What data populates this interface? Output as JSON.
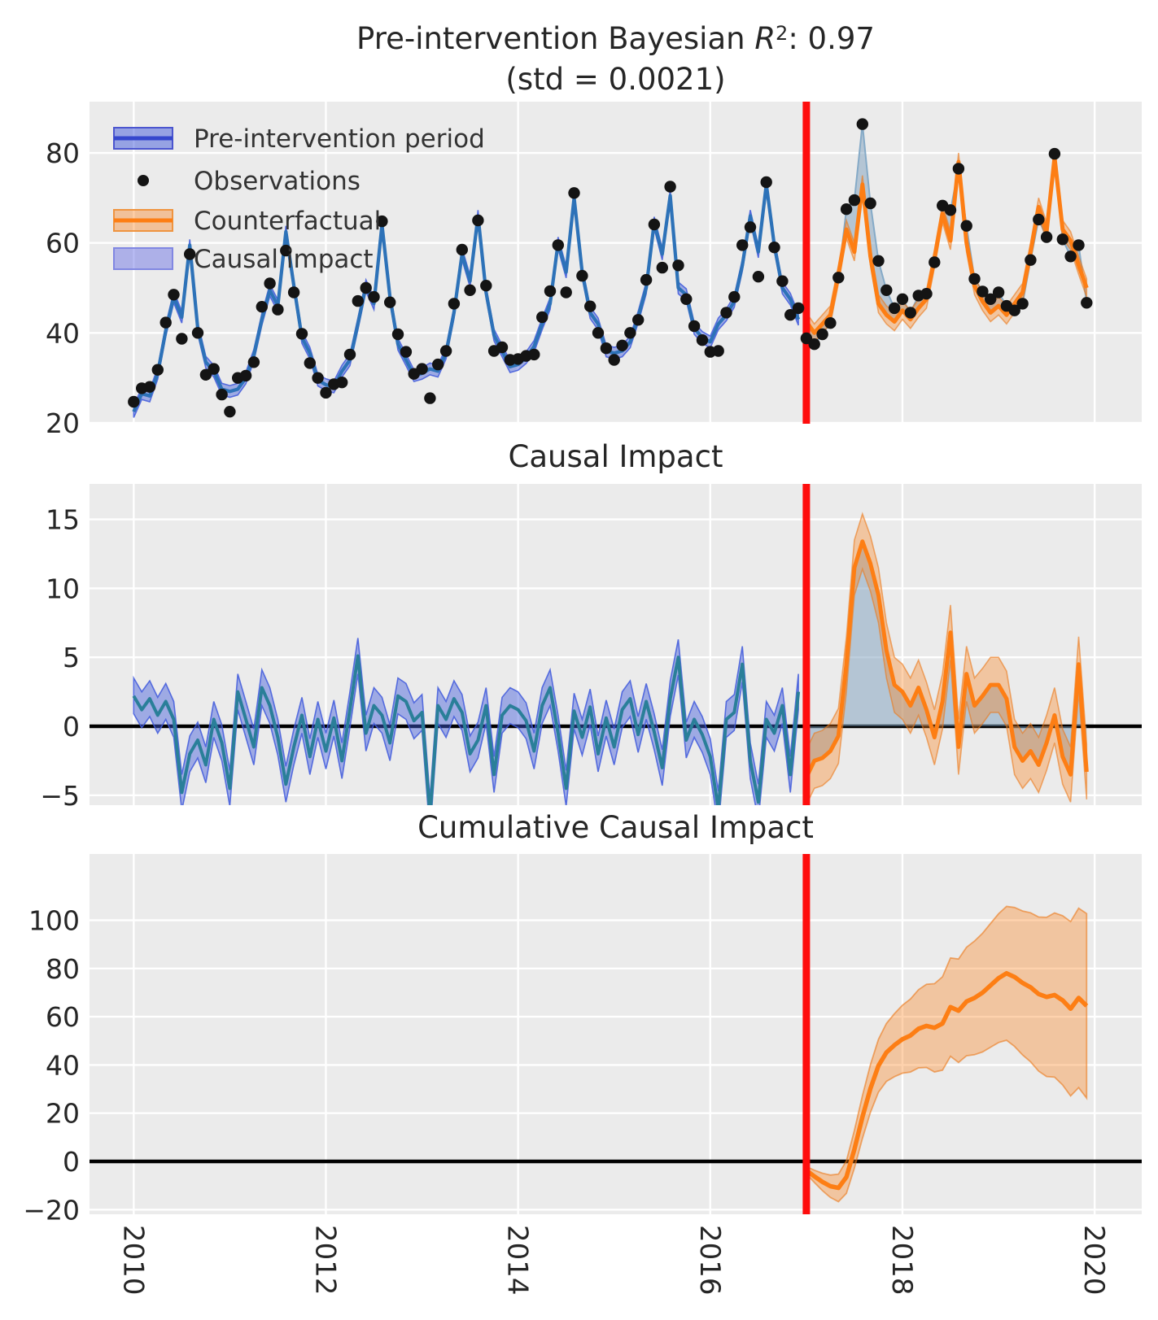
{
  "figure": {
    "title_prefix": "Pre-intervention Bayesian ",
    "title_rsquared_symbol": "R",
    "title_rsquared_sup": "2",
    "title_suffix": ": 0.97",
    "title_line2": "(std = 0.0021)"
  },
  "panels": {
    "top": {
      "yticks": [
        {
          "value": 80,
          "label": "80"
        },
        {
          "value": 60,
          "label": "60"
        },
        {
          "value": 40,
          "label": "40"
        },
        {
          "value": 20,
          "label": "20"
        }
      ]
    },
    "middle": {
      "title": "Causal Impact",
      "yticks": [
        {
          "value": 15,
          "label": "15"
        },
        {
          "value": 10,
          "label": "10"
        },
        {
          "value": 5,
          "label": "5"
        },
        {
          "value": 0,
          "label": "0"
        },
        {
          "value": -5,
          "label": "−5"
        }
      ]
    },
    "bottom": {
      "title": "Cumulative Causal Impact",
      "yticks": [
        {
          "value": 100,
          "label": "100"
        },
        {
          "value": 80,
          "label": "80"
        },
        {
          "value": 60,
          "label": "60"
        },
        {
          "value": 40,
          "label": "40"
        },
        {
          "value": 20,
          "label": "20"
        },
        {
          "value": 0,
          "label": "0"
        },
        {
          "value": -20,
          "label": "−20"
        }
      ]
    }
  },
  "xticks": [
    {
      "value": 2010,
      "label": "2010"
    },
    {
      "value": 2012,
      "label": "2012"
    },
    {
      "value": 2014,
      "label": "2014"
    },
    {
      "value": 2016,
      "label": "2016"
    },
    {
      "value": 2018,
      "label": "2018"
    },
    {
      "value": 2020,
      "label": "2020"
    }
  ],
  "legend": {
    "items": [
      {
        "label": "Pre-intervention period",
        "swatch": "band-line",
        "fill": "rgba(65,90,220,0.5)",
        "edge": "#4b55cf",
        "line": "#3547cd"
      },
      {
        "label": "Observations",
        "swatch": "dot",
        "color": "#141414"
      },
      {
        "label": "Counterfactual",
        "swatch": "band-line",
        "fill": "rgba(253,126,20,0.38)",
        "edge": "#ef9440",
        "line": "#fd7e14"
      },
      {
        "label": "Causal impact",
        "swatch": "patch",
        "fill": "rgba(112,118,230,0.5)",
        "edge": "#8187e2"
      }
    ]
  },
  "chart_data": {
    "type": "line",
    "title": "Pre-intervention Bayesian R²: 0.97 (std = 0.0021)",
    "x_start_year": 2010,
    "points_per_year": 12,
    "n_points": 120,
    "intervention_year": 2017,
    "xlim": [
      2009.54,
      2020.49
    ],
    "panel_meta": [
      {
        "name": "model_fit",
        "ylim": [
          20,
          91.4
        ],
        "grid": true
      },
      {
        "name": "pointwise_impact",
        "ylim": [
          -5.7,
          17.6
        ],
        "grid": true
      },
      {
        "name": "cumulative_impact",
        "ylim": [
          -22,
          127.5
        ],
        "grid": true
      }
    ],
    "series": {
      "observations": [
        24.7,
        27.7,
        28,
        31.8,
        42.3,
        48.5,
        38.7,
        57.5,
        40,
        30.7,
        32,
        26.3,
        22.5,
        30,
        30.5,
        33.5,
        45.8,
        51,
        45.2,
        58.3,
        49,
        39.8,
        33.3,
        30,
        26.7,
        28.6,
        29,
        35.2,
        47.1,
        50,
        48,
        64.8,
        46.8,
        39.7,
        35.8,
        30.9,
        32,
        25.5,
        33,
        36,
        46.5,
        58.5,
        49.5,
        65,
        50.5,
        36,
        36.8,
        34,
        34.2,
        34.9,
        35.2,
        43.5,
        49.3,
        59.5,
        49,
        71.1,
        52.7,
        45.9,
        40,
        36.6,
        34,
        37.2,
        40,
        42.9,
        51.8,
        64.1,
        54.5,
        72.5,
        55,
        47.5,
        41.5,
        38.4,
        35.8,
        36,
        44.5,
        48,
        59.5,
        63.5,
        52.5,
        73.5,
        59,
        51.5,
        44,
        45.5,
        38.8,
        37.5,
        39.7,
        42.2,
        52.3,
        67.5,
        69.5,
        86.4,
        68.8,
        56,
        49.5,
        45.5,
        47.5,
        44.5,
        48.3,
        48.7,
        55.7,
        68.3,
        67.3,
        76.5,
        63.8,
        52,
        49.2,
        47.5,
        49,
        46,
        45,
        46.5,
        56.2,
        65.2,
        61.3,
        79.8,
        60.8,
        57,
        59.5,
        46.7
      ],
      "model_and_counterfactual_line": [
        22.5,
        26.5,
        26,
        31,
        40.5,
        48,
        43.5,
        59.5,
        41,
        33.5,
        31.5,
        27.5,
        27,
        27.5,
        30,
        35,
        43,
        49.5,
        46,
        62.5,
        50.5,
        39,
        35.5,
        29.5,
        28.5,
        28,
        31.5,
        34,
        42,
        50.5,
        46.5,
        64,
        48,
        37.5,
        34,
        30.5,
        31,
        32,
        31.5,
        35.5,
        44.5,
        57.5,
        51.5,
        66,
        49,
        39.5,
        36,
        32.5,
        33,
        34.5,
        37,
        42,
        46.5,
        60,
        53.5,
        70,
        53.5,
        44.5,
        42,
        36,
        35.5,
        36,
        38,
        43.5,
        50,
        64.5,
        57.5,
        70.5,
        50,
        48.5,
        41,
        39,
        38,
        42,
        44,
        47,
        55,
        66,
        58,
        73,
        59.5,
        50,
        47.5,
        43,
        42.5,
        40,
        42,
        44,
        53,
        63,
        58,
        73,
        57,
        46.5,
        44,
        42.5,
        45,
        43,
        45.5,
        47.5,
        56.5,
        66.5,
        60.5,
        78,
        60,
        50.5,
        47,
        44.5,
        46,
        44,
        46.5,
        49,
        58,
        68,
        62.5,
        79,
        63,
        60.5,
        55,
        50
      ],
      "pointwise_impact": [
        2.2,
        1.2,
        2,
        0.8,
        1.8,
        0.5,
        -4.8,
        -2,
        -1,
        -2.8,
        0.5,
        -1.2,
        -4.5,
        2.5,
        0.5,
        -1.5,
        2.8,
        1.5,
        -0.8,
        -4.2,
        -1.5,
        0.8,
        -2.2,
        0.5,
        -1.8,
        0.6,
        -2.5,
        1.2,
        5.1,
        -0.5,
        1.5,
        0.8,
        -1.2,
        2.2,
        1.8,
        0.4,
        1,
        -6.5,
        1.5,
        0.5,
        2,
        1,
        -2,
        -1,
        1.5,
        -3.5,
        0.8,
        1.5,
        1.2,
        0.4,
        -1.8,
        1.5,
        2.8,
        -0.5,
        -4.5,
        1.1,
        -0.8,
        1.4,
        -2,
        0.6,
        -1.5,
        1.2,
        2,
        -0.6,
        1.8,
        -0.4,
        -3,
        2,
        5,
        -1,
        0.5,
        -0.6,
        -2.2,
        -6,
        0.5,
        1,
        4.5,
        -2.5,
        -5.5,
        0.5,
        -0.5,
        1.5,
        -3.5,
        2.5,
        -3.7,
        -2.5,
        -2.3,
        -1.8,
        -0.7,
        4.5,
        11.5,
        13.4,
        11.8,
        9.5,
        5.5,
        3,
        2.5,
        1.5,
        2.8,
        1.2,
        -0.8,
        1.8,
        6.8,
        -1.5,
        3.8,
        1.5,
        2.2,
        3,
        3,
        2,
        -1.5,
        -2.5,
        -1.8,
        -2.8,
        -1.2,
        0.8,
        -2.2,
        -3.5,
        4.5,
        -3.3
      ],
      "cumulative_impact_post": [
        -3.7,
        -6.2,
        -8.5,
        -10.3,
        -11,
        -6.5,
        5,
        18.4,
        30.2,
        39.7,
        45.2,
        48.2,
        50.7,
        52.2,
        55,
        56.2,
        55.4,
        57.2,
        64,
        62.5,
        66.3,
        67.8,
        70,
        73,
        76,
        78,
        76.5,
        74,
        72.2,
        69.4,
        68.2,
        69,
        66.8,
        63.3,
        67.8,
        64.5
      ],
      "pre_band_halfwidth": 1.3,
      "post_band_halfwidth": 2.0,
      "cumulative_band_halfwidth_start": 1.5,
      "cumulative_band_halfwidth_growth_per_month": 1.05
    },
    "style": {
      "axes_background": "#ebebeb",
      "grid_color": "#ffffff",
      "blue_line": "#2d72b8",
      "teal_line": "#2a7f99",
      "orange_line": "#fd7e14",
      "blue_band": "rgba(65,90,220,0.45)",
      "blue_band_edge": "rgba(65,90,220,0.85)",
      "orange_band": "rgba(253,126,20,0.35)",
      "orange_band_edge": "rgba(235,120,25,0.6)",
      "causal_fill": "rgba(125,160,190,0.5)",
      "causal_fill_edge": "#85aac7",
      "intervention_line": "#fe0c0c",
      "zero_line": "#000000",
      "dot_color": "#141414",
      "tick_color": "#262626"
    }
  }
}
